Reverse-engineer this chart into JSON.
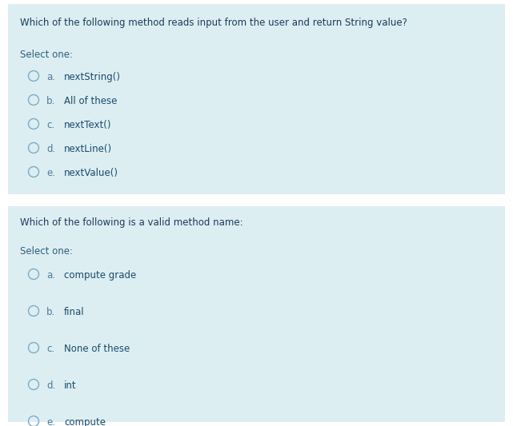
{
  "background_color": "#e8f4f6",
  "box_color": "#ddeef2",
  "white_gap": "#ffffff",
  "question1": "Which of the following method reads input from the user and return String value?",
  "question2": "Which of the following is a valid method name:",
  "select_one": "Select one:",
  "q1_options": [
    [
      "a.",
      "nextString()"
    ],
    [
      "b.",
      "All of these"
    ],
    [
      "c.",
      "nextText()"
    ],
    [
      "d.",
      "nextLine()"
    ],
    [
      "e.",
      "nextValue()"
    ]
  ],
  "q2_options": [
    [
      "a.",
      "compute grade"
    ],
    [
      "b.",
      "final"
    ],
    [
      "c.",
      "None of these"
    ],
    [
      "d.",
      "int"
    ],
    [
      "e.",
      "compute"
    ]
  ],
  "question_fontsize": 8.5,
  "option_fontsize": 8.5,
  "select_fontsize": 8.5,
  "question_color": "#1a3a5c",
  "option_label_color": "#4a7a9b",
  "option_text_color": "#1a4a6b",
  "select_color": "#2c5f7a",
  "circle_edge_color": "#7bacc4",
  "fig_width": 6.41,
  "fig_height": 5.33,
  "dpi": 100
}
